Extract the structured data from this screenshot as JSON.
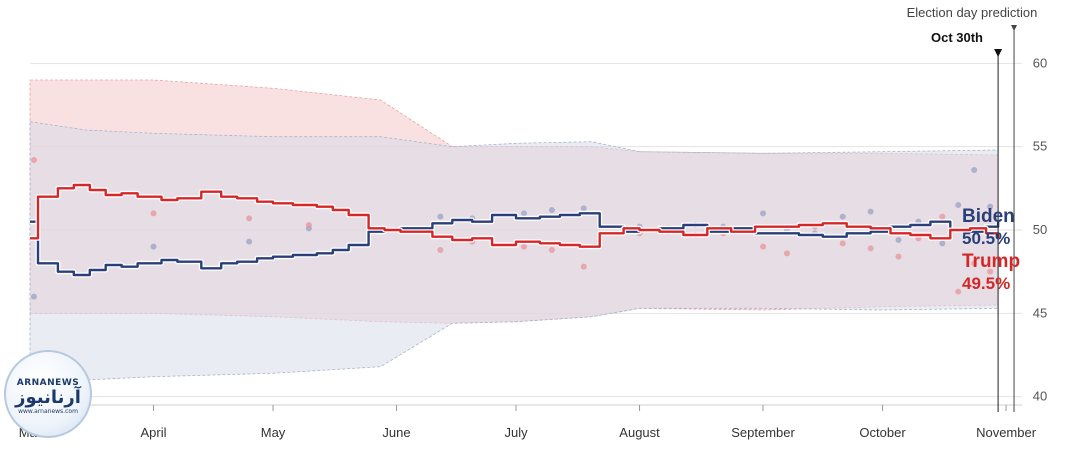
{
  "chart_data": {
    "type": "line",
    "y_ticks": [
      40,
      45,
      50,
      55,
      60
    ],
    "ylim": [
      39.5,
      62
    ],
    "x_ticks": [
      {
        "date": "2020-03-01",
        "label": "Mar"
      },
      {
        "date": "2020-04-01",
        "label": "April"
      },
      {
        "date": "2020-05-01",
        "label": "May"
      },
      {
        "date": "2020-06-01",
        "label": "June"
      },
      {
        "date": "2020-07-01",
        "label": "July"
      },
      {
        "date": "2020-08-01",
        "label": "August"
      },
      {
        "date": "2020-09-01",
        "label": "September"
      },
      {
        "date": "2020-10-01",
        "label": "October"
      },
      {
        "date": "2020-11-01",
        "label": "November"
      }
    ],
    "xlim": [
      "2020-03-01",
      "2020-11-05"
    ],
    "grid": true,
    "marker_date": "2020-10-30",
    "marker_label": "Oct 30th",
    "election_date": "2020-11-03",
    "election_label": "Election day prediction",
    "series": [
      {
        "name": "Biden",
        "color": "#2a3f7a",
        "final_label": "50.5%",
        "x": [
          "2020-03-01",
          "2020-03-03",
          "2020-03-08",
          "2020-03-12",
          "2020-03-16",
          "2020-03-20",
          "2020-03-24",
          "2020-03-28",
          "2020-04-03",
          "2020-04-07",
          "2020-04-13",
          "2020-04-18",
          "2020-04-22",
          "2020-04-27",
          "2020-05-01",
          "2020-05-06",
          "2020-05-12",
          "2020-05-16",
          "2020-05-20",
          "2020-05-25",
          "2020-05-29",
          "2020-06-02",
          "2020-06-10",
          "2020-06-15",
          "2020-06-20",
          "2020-06-25",
          "2020-07-01",
          "2020-07-07",
          "2020-07-12",
          "2020-07-17",
          "2020-07-22",
          "2020-07-28",
          "2020-08-01",
          "2020-08-06",
          "2020-08-12",
          "2020-08-18",
          "2020-08-24",
          "2020-08-30",
          "2020-09-04",
          "2020-09-10",
          "2020-09-16",
          "2020-09-22",
          "2020-09-28",
          "2020-10-03",
          "2020-10-08",
          "2020-10-13",
          "2020-10-18",
          "2020-10-23",
          "2020-10-27",
          "2020-10-30"
        ],
        "y": [
          50.5,
          48.0,
          47.5,
          47.3,
          47.6,
          47.9,
          47.8,
          48.0,
          48.2,
          48.1,
          47.7,
          48.0,
          48.1,
          48.3,
          48.4,
          48.5,
          48.6,
          48.8,
          49.1,
          49.9,
          50.0,
          50.1,
          50.4,
          50.6,
          50.5,
          50.9,
          50.7,
          50.8,
          50.9,
          51.0,
          50.2,
          49.9,
          50.0,
          50.1,
          50.3,
          49.9,
          50.1,
          49.8,
          49.8,
          49.7,
          49.6,
          49.8,
          49.9,
          50.2,
          50.3,
          50.5,
          50.0,
          49.9,
          50.2,
          50.5
        ]
      },
      {
        "name": "Trump",
        "color": "#d62728",
        "final_label": "49.5%",
        "x": [
          "2020-03-01",
          "2020-03-03",
          "2020-03-08",
          "2020-03-12",
          "2020-03-16",
          "2020-03-20",
          "2020-03-24",
          "2020-03-28",
          "2020-04-03",
          "2020-04-07",
          "2020-04-13",
          "2020-04-18",
          "2020-04-22",
          "2020-04-27",
          "2020-05-01",
          "2020-05-06",
          "2020-05-12",
          "2020-05-16",
          "2020-05-20",
          "2020-05-25",
          "2020-05-29",
          "2020-06-02",
          "2020-06-10",
          "2020-06-15",
          "2020-06-20",
          "2020-06-25",
          "2020-07-01",
          "2020-07-07",
          "2020-07-12",
          "2020-07-17",
          "2020-07-22",
          "2020-07-28",
          "2020-08-01",
          "2020-08-06",
          "2020-08-12",
          "2020-08-18",
          "2020-08-24",
          "2020-08-30",
          "2020-09-04",
          "2020-09-10",
          "2020-09-16",
          "2020-09-22",
          "2020-09-28",
          "2020-10-03",
          "2020-10-08",
          "2020-10-13",
          "2020-10-18",
          "2020-10-23",
          "2020-10-27",
          "2020-10-30"
        ],
        "y": [
          49.5,
          52.0,
          52.5,
          52.7,
          52.4,
          52.1,
          52.2,
          52.0,
          51.8,
          51.9,
          52.3,
          52.0,
          51.9,
          51.7,
          51.6,
          51.5,
          51.4,
          51.2,
          50.9,
          50.1,
          50.0,
          49.9,
          49.6,
          49.4,
          49.5,
          49.1,
          49.3,
          49.2,
          49.1,
          49.0,
          49.8,
          50.1,
          50.0,
          49.9,
          49.7,
          50.1,
          49.9,
          50.2,
          50.2,
          50.3,
          50.4,
          50.2,
          50.1,
          49.8,
          49.7,
          49.5,
          50.0,
          50.1,
          49.8,
          49.5
        ]
      }
    ],
    "bands": [
      {
        "name": "Trump",
        "color": "#f6c9c9",
        "x": [
          "2020-03-01",
          "2020-03-15",
          "2020-04-01",
          "2020-05-01",
          "2020-05-28",
          "2020-06-15",
          "2020-07-01",
          "2020-07-20",
          "2020-08-01",
          "2020-09-01",
          "2020-10-01",
          "2020-10-30"
        ],
        "upper": [
          59.0,
          59.0,
          59.0,
          58.5,
          57.8,
          55.0,
          55.0,
          55.0,
          54.7,
          54.6,
          54.6,
          54.5
        ],
        "lower": [
          45.0,
          45.0,
          45.0,
          44.8,
          44.5,
          44.4,
          44.5,
          44.8,
          45.3,
          45.2,
          45.4,
          45.5
        ]
      },
      {
        "name": "Biden",
        "color": "#d7dcea",
        "x": [
          "2020-03-01",
          "2020-03-15",
          "2020-04-01",
          "2020-05-01",
          "2020-05-28",
          "2020-06-15",
          "2020-07-01",
          "2020-07-20",
          "2020-08-01",
          "2020-09-01",
          "2020-10-01",
          "2020-10-30"
        ],
        "upper": [
          56.5,
          56.0,
          55.8,
          55.6,
          55.6,
          55.0,
          55.2,
          55.3,
          54.7,
          54.6,
          54.7,
          54.8
        ],
        "lower": [
          41.0,
          41.0,
          41.2,
          41.4,
          41.8,
          44.4,
          44.5,
          44.8,
          45.3,
          45.3,
          45.2,
          45.3
        ]
      }
    ],
    "polls": [
      {
        "series": "Biden",
        "x": [
          "2020-03-02",
          "2020-04-01",
          "2020-04-25",
          "2020-05-10",
          "2020-06-12",
          "2020-06-20",
          "2020-07-03",
          "2020-07-10",
          "2020-07-18",
          "2020-08-01",
          "2020-08-08",
          "2020-08-15",
          "2020-08-22",
          "2020-09-01",
          "2020-09-07",
          "2020-09-14",
          "2020-09-21",
          "2020-09-28",
          "2020-10-05",
          "2020-10-10",
          "2020-10-16",
          "2020-10-20",
          "2020-10-24",
          "2020-10-28"
        ],
        "y": [
          46.0,
          49.0,
          49.3,
          50.1,
          50.8,
          50.7,
          51.0,
          51.2,
          51.3,
          50.2,
          50.1,
          50.3,
          50.2,
          51.0,
          50.0,
          49.8,
          50.8,
          51.1,
          49.4,
          50.5,
          49.2,
          51.5,
          53.6,
          51.4
        ]
      },
      {
        "series": "Trump",
        "x": [
          "2020-03-02",
          "2020-04-01",
          "2020-04-25",
          "2020-05-10",
          "2020-06-12",
          "2020-06-20",
          "2020-07-03",
          "2020-07-10",
          "2020-07-18",
          "2020-08-01",
          "2020-08-08",
          "2020-08-15",
          "2020-08-22",
          "2020-09-01",
          "2020-09-07",
          "2020-09-14",
          "2020-09-21",
          "2020-09-28",
          "2020-10-05",
          "2020-10-10",
          "2020-10-16",
          "2020-10-20",
          "2020-10-24",
          "2020-10-28"
        ],
        "y": [
          54.2,
          51.0,
          50.7,
          50.3,
          48.8,
          49.3,
          49.0,
          48.8,
          47.8,
          49.8,
          49.9,
          49.7,
          49.8,
          49.0,
          48.6,
          50.2,
          49.2,
          48.9,
          48.4,
          49.5,
          50.8,
          46.3,
          48.0,
          47.5
        ]
      }
    ]
  }
}
